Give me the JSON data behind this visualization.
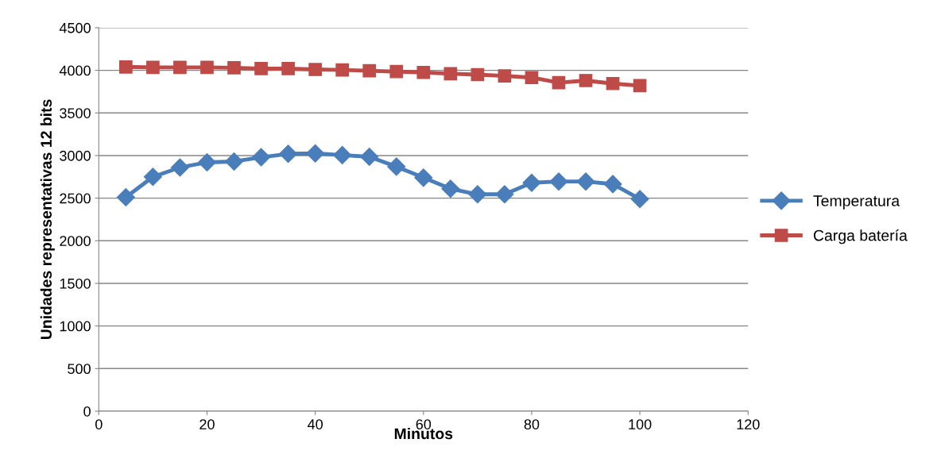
{
  "chart_data": {
    "type": "line",
    "xlabel": "Minutos",
    "ylabel": "Unidades representativas 12 bits",
    "x": [
      5,
      10,
      15,
      20,
      25,
      30,
      35,
      40,
      45,
      50,
      55,
      60,
      65,
      70,
      75,
      80,
      85,
      90,
      95,
      100
    ],
    "series": [
      {
        "name": "Temperatura",
        "color": "#4a7ebb",
        "marker": "diamond",
        "values": [
          2510,
          2750,
          2860,
          2920,
          2930,
          2980,
          3020,
          3025,
          3005,
          2985,
          2870,
          2740,
          2610,
          2545,
          2545,
          2680,
          2695,
          2695,
          2665,
          2490
        ]
      },
      {
        "name": "Carga batería",
        "color": "#be4b48",
        "marker": "square",
        "values": [
          4040,
          4035,
          4035,
          4035,
          4030,
          4020,
          4020,
          4010,
          4005,
          3995,
          3985,
          3975,
          3960,
          3950,
          3935,
          3915,
          3855,
          3880,
          3845,
          3820
        ]
      }
    ],
    "xlim": [
      0,
      120
    ],
    "xticks": [
      0,
      20,
      40,
      60,
      80,
      100,
      120
    ],
    "ylim": [
      0,
      4500
    ],
    "yticks": [
      0,
      500,
      1000,
      1500,
      2000,
      2500,
      3000,
      3500,
      4000,
      4500
    ],
    "grid": "y",
    "legend": "right",
    "line_style": "solid"
  }
}
